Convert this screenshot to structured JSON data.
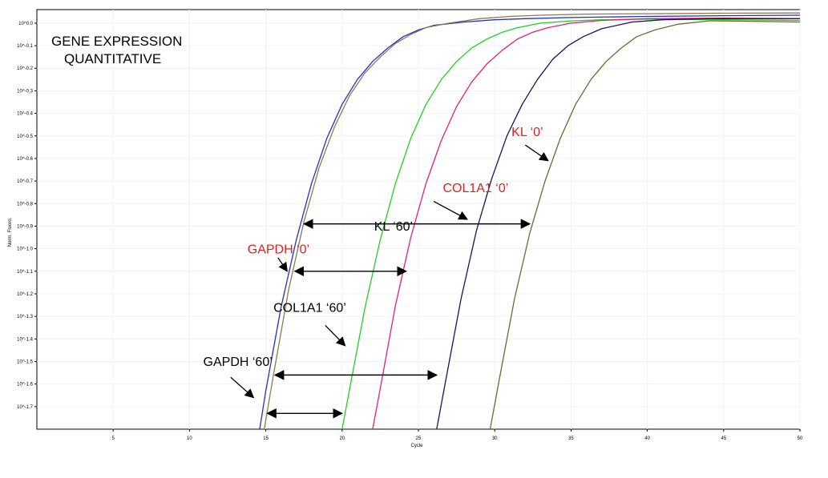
{
  "chart_data": {
    "type": "line",
    "title_lines": [
      "GENE EXPRESSION",
      "QUANTITATIVE"
    ],
    "xlabel": "Cycle",
    "ylabel": "Norm. Fluoro.",
    "xlim": [
      0,
      50
    ],
    "ylog_exp_range": [
      -18,
      0.6
    ],
    "x_ticks": [
      5,
      10,
      15,
      20,
      25,
      30,
      35,
      40,
      45,
      50
    ],
    "y_tick_labels": [
      {
        "exp": 0,
        "label": "10^0.0"
      },
      {
        "exp": -1,
        "label": "10^-0.1"
      },
      {
        "exp": -2,
        "label": "10^-0.2"
      },
      {
        "exp": -3,
        "label": "10^-0.3"
      },
      {
        "exp": -4,
        "label": "10^-0.4"
      },
      {
        "exp": -5,
        "label": "10^-0.5"
      },
      {
        "exp": -6,
        "label": "10^-0.6"
      },
      {
        "exp": -7,
        "label": "10^-0.7"
      },
      {
        "exp": -8,
        "label": "10^-0.8"
      },
      {
        "exp": -9,
        "label": "10^-0.9"
      },
      {
        "exp": -10,
        "label": "10^-1.0"
      },
      {
        "exp": -11,
        "label": "10^-1.1"
      },
      {
        "exp": -12,
        "label": "10^-1.2"
      },
      {
        "exp": -13,
        "label": "10^-1.3"
      },
      {
        "exp": -14,
        "label": "10^-1.4"
      },
      {
        "exp": -15,
        "label": "10^-1.5"
      },
      {
        "exp": -16,
        "label": "10^-1.6"
      },
      {
        "exp": -17,
        "label": "10^-1.7"
      }
    ],
    "series": [
      {
        "color": "#2030c0",
        "x": [
          14.6,
          15,
          16,
          17,
          18,
          19,
          20,
          21,
          22,
          23,
          24,
          25,
          26,
          28,
          30,
          32,
          35,
          40,
          45,
          50
        ],
        "y": [
          -18,
          -16.3,
          -12.6,
          -9.6,
          -7.1,
          -5.1,
          -3.6,
          -2.5,
          -1.7,
          -1.1,
          -0.6,
          -0.3,
          -0.1,
          0.05,
          0.15,
          0.2,
          0.25,
          0.3,
          0.33,
          0.35
        ]
      },
      {
        "color": "#8a7a50",
        "x": [
          14.9,
          15.5,
          16.5,
          17.5,
          18.5,
          19.5,
          20.5,
          21.5,
          22.5,
          23.5,
          24.5,
          25.5,
          27,
          29,
          31,
          33,
          36,
          40,
          45,
          50
        ],
        "y": [
          -18,
          -15.6,
          -11.8,
          -8.8,
          -6.4,
          -4.6,
          -3.2,
          -2.2,
          -1.5,
          -0.9,
          -0.5,
          -0.2,
          0,
          0.2,
          0.3,
          0.35,
          0.4,
          0.42,
          0.44,
          0.45
        ]
      },
      {
        "color": "#20d020",
        "x": [
          20,
          20.5,
          21.5,
          22.5,
          23.5,
          24.5,
          25.5,
          26.5,
          27.5,
          28.5,
          29.5,
          30.5,
          31.5,
          33,
          35,
          37,
          40,
          45,
          50
        ],
        "y": [
          -18,
          -16.2,
          -12.6,
          -9.6,
          -7.1,
          -5.1,
          -3.6,
          -2.5,
          -1.7,
          -1.1,
          -0.7,
          -0.4,
          -0.2,
          0,
          0.1,
          0.15,
          0.18,
          0.15,
          0.12
        ]
      },
      {
        "color": "#e0207a",
        "x": [
          22,
          22.5,
          23.5,
          24.5,
          25.5,
          26.5,
          27.5,
          28.5,
          29.5,
          30.5,
          31.5,
          32.5,
          33.5,
          35,
          37,
          40,
          45,
          50
        ],
        "y": [
          -18,
          -16.2,
          -12.5,
          -9.5,
          -7.1,
          -5.2,
          -3.7,
          -2.6,
          -1.8,
          -1.2,
          -0.7,
          -0.4,
          -0.2,
          0,
          0.12,
          0.2,
          0.22,
          0.2
        ]
      },
      {
        "color": "#1a1060",
        "x": [
          26.2,
          26.8,
          27.8,
          28.8,
          29.8,
          30.8,
          31.8,
          32.8,
          33.8,
          34.8,
          35.8,
          37,
          39,
          41,
          44,
          47,
          50
        ],
        "y": [
          -18,
          -15.8,
          -12.2,
          -9.2,
          -6.9,
          -5,
          -3.6,
          -2.5,
          -1.6,
          -1,
          -0.6,
          -0.25,
          0.05,
          0.15,
          0.2,
          0.2,
          0.2
        ]
      },
      {
        "color": "#6a6a30",
        "x": [
          29.7,
          30.3,
          31.3,
          32.3,
          33.3,
          34.3,
          35.3,
          36.3,
          37.3,
          38.3,
          39.3,
          40.5,
          42,
          44,
          47,
          50
        ],
        "y": [
          -18,
          -15.8,
          -12.2,
          -9.3,
          -7,
          -5.1,
          -3.6,
          -2.5,
          -1.7,
          -1.1,
          -0.6,
          -0.3,
          -0.05,
          0.1,
          0.08,
          0.05
        ]
      }
    ],
    "annotations": [
      {
        "text": "GAPDH ‘0’",
        "color": "#e02020",
        "text_at": [
          13.8,
          -10.2
        ],
        "arrow_from": [
          15.8,
          -10.4
        ],
        "arrow_to": [
          16.4,
          -11.0
        ]
      },
      {
        "text": "KL ‘60’",
        "color": "#000000",
        "text_at": [
          22.1,
          -9.2
        ],
        "arrow_from": null,
        "arrow_to": null
      },
      {
        "text": "COL1A1 ‘60’",
        "color": "#000000",
        "text_at": [
          15.5,
          -12.8
        ],
        "arrow_from": [
          18.9,
          -13.4
        ],
        "arrow_to": [
          20.2,
          -14.3
        ]
      },
      {
        "text": "GAPDH ‘60’",
        "color": "#000000",
        "text_at": [
          10.9,
          -15.2
        ],
        "arrow_from": [
          12.7,
          -15.7
        ],
        "arrow_to": [
          14.2,
          -16.6
        ]
      },
      {
        "text": "COL1A1 ‘0’",
        "color": "#e02020",
        "text_at": [
          26.6,
          -7.5
        ],
        "arrow_from": [
          26.0,
          -7.9
        ],
        "arrow_to": [
          28.2,
          -8.7
        ]
      },
      {
        "text": "KL ‘0’",
        "color": "#e02020",
        "text_at": [
          31.1,
          -5.0
        ],
        "arrow_from": [
          32.0,
          -5.4
        ],
        "arrow_to": [
          33.5,
          -6.1
        ]
      }
    ],
    "range_arrows": [
      {
        "x": [
          17.5,
          32.3
        ],
        "y": -8.9
      },
      {
        "x": [
          16.9,
          24.2
        ],
        "y": -11.0
      },
      {
        "x": [
          15.6,
          26.2
        ],
        "y": -15.6
      },
      {
        "x": [
          15.1,
          20.0
        ],
        "y": -17.3
      }
    ]
  }
}
